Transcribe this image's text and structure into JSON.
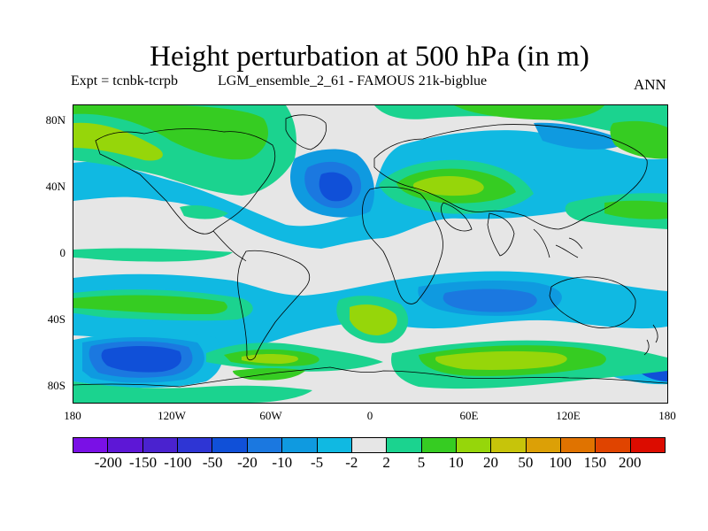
{
  "title": "Height perturbation at 500 hPa (in m)",
  "subtitle_left": "Expt = tcnbk-tcrpb",
  "subtitle_mid": "LGM_ensemble_2_61 - FAMOUS 21k-bigblue",
  "subtitle_right": "ANN",
  "lat_labels": [
    "80N",
    "40N",
    "0",
    "40S",
    "80S"
  ],
  "lon_labels": [
    "180",
    "120W",
    "60W",
    "0",
    "60E",
    "120E",
    "180"
  ],
  "colorbar": {
    "labels": [
      "-200",
      "-150",
      "-100",
      "-50",
      "-20",
      "-10",
      "-5",
      "-2",
      "2",
      "5",
      "10",
      "20",
      "50",
      "100",
      "150",
      "200"
    ],
    "colors": [
      "#7a10e6",
      "#5d17d6",
      "#4a22cf",
      "#2e35d4",
      "#1050d8",
      "#1b78e0",
      "#0f9ae0",
      "#10b9e2",
      "#e6e6e6",
      "#1bd38f",
      "#36cc22",
      "#96d60a",
      "#c7c40a",
      "#dca006",
      "#e07300",
      "#e04400",
      "#dc0c00"
    ]
  },
  "colors": {
    "neutral": "#e6e6e6",
    "coast": "#000000"
  }
}
